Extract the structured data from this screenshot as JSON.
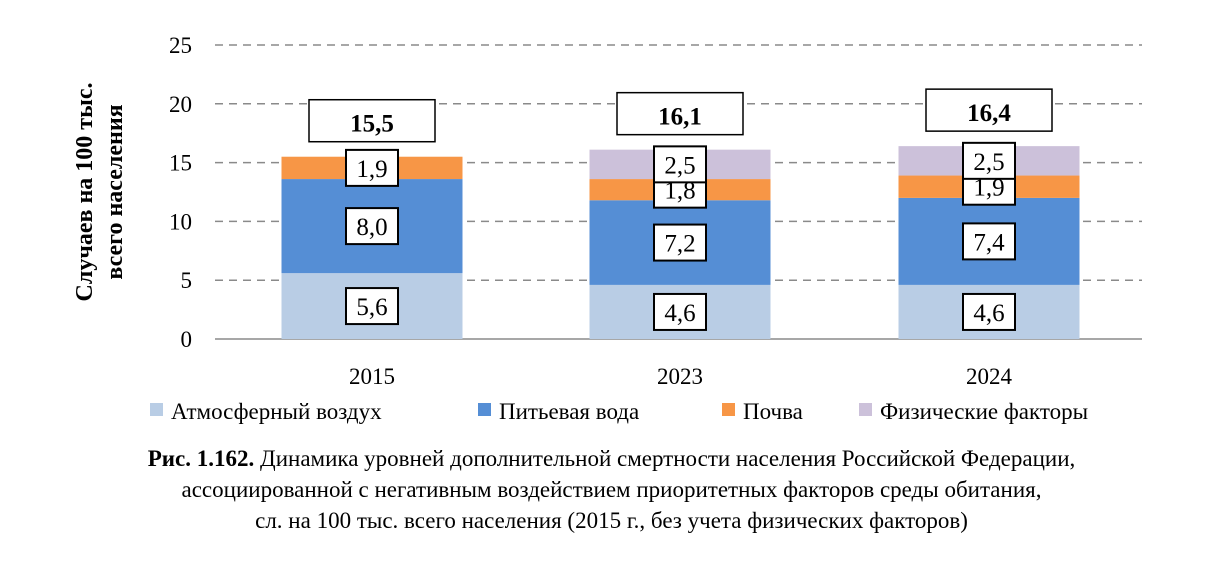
{
  "chart_data": {
    "type": "bar",
    "stacked": true,
    "categories": [
      "2015",
      "2023",
      "2024"
    ],
    "series": [
      {
        "name": "Атмосферный воздух",
        "color": "#b9cde5",
        "values": [
          5.6,
          4.6,
          4.6
        ],
        "labels": [
          "5,6",
          "4,6",
          "4,6"
        ]
      },
      {
        "name": "Питьевая вода",
        "color": "#558ed5",
        "values": [
          8.0,
          7.2,
          7.4
        ],
        "labels": [
          "8,0",
          "7,2",
          "7,4"
        ]
      },
      {
        "name": "Почва",
        "color": "#f79646",
        "values": [
          1.9,
          1.8,
          1.9
        ],
        "labels": [
          "1,9",
          "1,8",
          "1,9"
        ]
      },
      {
        "name": "Физические факторы",
        "color": "#ccc1da",
        "values": [
          null,
          2.5,
          2.5
        ],
        "labels": [
          null,
          "2,5",
          "2,5"
        ]
      }
    ],
    "totals": [
      15.5,
      16.1,
      16.4
    ],
    "total_labels": [
      "15,5",
      "16,1",
      "16,4"
    ],
    "ylabel": [
      "Случаев на 100 тыс.",
      "всего населения"
    ],
    "ylim": [
      0,
      25
    ],
    "yticks": [
      "0",
      "5",
      "10",
      "15",
      "20",
      "25"
    ],
    "grid": true,
    "legend": "bottom"
  },
  "caption": {
    "prefix": "Рис. 1.162.",
    "line1": " Динамика уровней дополнительной смертности населения Российской Федерации,",
    "line2": "ассоциированной с негативным воздействием приоритетных факторов среды обитания,",
    "line3": "сл. на 100 тыс. всего населения (2015 г., без учета физических факторов)"
  }
}
